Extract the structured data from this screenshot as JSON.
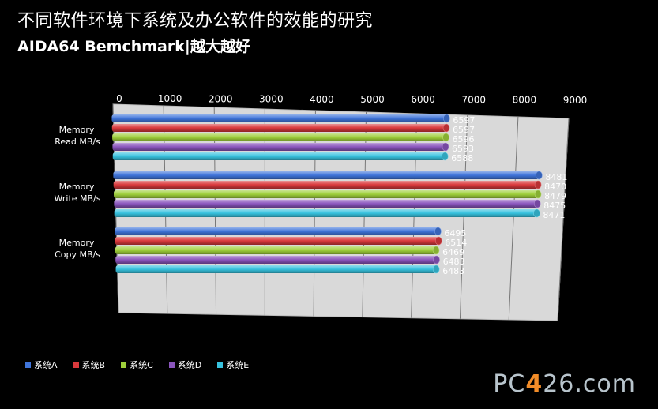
{
  "header": {
    "title": "不同软件环境下系统及办公软件的效能的研究",
    "subtitle": "AIDA64 Bemchmark|越大越好"
  },
  "logo": {
    "prefix": "PC",
    "mark": "4",
    "suffix": "26.com"
  },
  "colors": {
    "系统A": "#3f74d9",
    "系统B": "#d9393c",
    "系统C": "#9ecf3b",
    "系统D": "#8a55bd",
    "系统E": "#37c2de"
  },
  "chart_data": {
    "type": "bar",
    "orientation": "horizontal",
    "title": "不同软件环境下系统及办公软件的效能的研究",
    "subtitle": "AIDA64 Bemchmark|越大越好",
    "categories": [
      [
        "Memory",
        "Read MB/s"
      ],
      [
        "Memory",
        "Write MB/s"
      ],
      [
        "Memory",
        "Copy MB/s"
      ]
    ],
    "xlim": [
      0,
      9000
    ],
    "ticks": [
      "0",
      "1000",
      "2000",
      "3000",
      "4000",
      "5000",
      "6000",
      "7000",
      "8000",
      "9000"
    ],
    "series": [
      {
        "name": "系统A",
        "values": [
          6597,
          8481,
          6495
        ]
      },
      {
        "name": "系统B",
        "values": [
          6597,
          8470,
          6514
        ]
      },
      {
        "name": "系统C",
        "values": [
          6596,
          8479,
          6469
        ]
      },
      {
        "name": "系统D",
        "values": [
          6593,
          8475,
          6483
        ]
      },
      {
        "name": "系统E",
        "values": [
          6588,
          8471,
          6483
        ]
      }
    ],
    "legend_position": "bottom-left",
    "grid": true
  }
}
